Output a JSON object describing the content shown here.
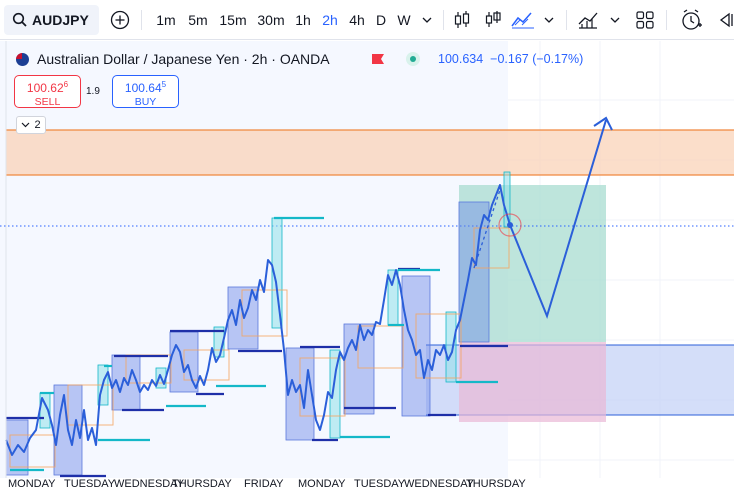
{
  "toolbar": {
    "symbol": "AUDJPY",
    "intervals": [
      {
        "label": "1m",
        "active": false
      },
      {
        "label": "5m",
        "active": false
      },
      {
        "label": "15m",
        "active": false
      },
      {
        "label": "30m",
        "active": false
      },
      {
        "label": "1h",
        "active": false
      },
      {
        "label": "2h",
        "active": true
      },
      {
        "label": "4h",
        "active": false
      },
      {
        "label": "D",
        "active": false
      },
      {
        "label": "W",
        "active": false
      }
    ],
    "icons": [
      "search-icon",
      "add-compare-icon",
      "chevron-down-icon",
      "candles-icon",
      "bar-style-icon",
      "indicators-icon",
      "layout-grid-icon",
      "alert-clock-icon",
      "replay-icon"
    ]
  },
  "legend": {
    "title": "Australian Dollar / Japanese Yen · 2h · OANDA",
    "price": "100.634",
    "change": "−0.167 (−0.17%)"
  },
  "trade": {
    "sell_price_main": "100.62",
    "sell_price_sup": "6",
    "sell_label": "SELL",
    "spread": "1.9",
    "buy_price_main": "100.64",
    "buy_price_sup": "5",
    "buy_label": "BUY"
  },
  "collapse": {
    "count": "2"
  },
  "time_axis": {
    "days": [
      "MONDAY",
      "TUESDAY",
      "WEDNESDAY",
      "THURSDAY",
      "FRIDAY",
      "MONDAY",
      "TUESDAY",
      "WEDNESDAY",
      "THURSDAY"
    ]
  },
  "colors": {
    "accent": "#2962ff",
    "line": "#2b5fd9",
    "down": "#f23645",
    "supply_zone": "#f7c9a8",
    "profit_zone": "#a8dcd0",
    "loss_zone": "#e9b8d6",
    "demand_zone": "#c6d3f7",
    "teal": "#14b8c8",
    "navy": "#1e2fa8"
  }
}
